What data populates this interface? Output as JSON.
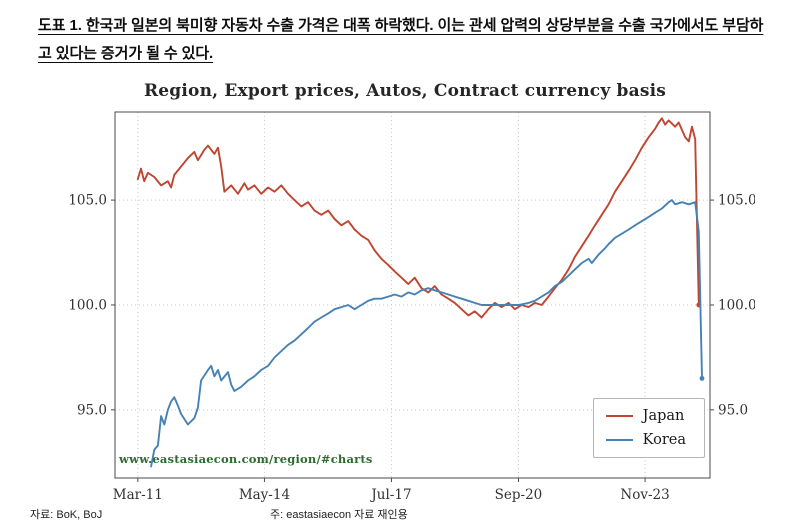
{
  "caption": {
    "text": "도표 1. 한국과 일본의 북미향 자동차 수출 가격은 대폭 하락했다. 이는 관세 압력의 상당부분을 수출 국가에서도 부담하고 있다는 증거가 될 수 있다."
  },
  "footer": {
    "source": "자료: BoK, BoJ",
    "note": "주: eastasiaecon 자료 재인용"
  },
  "chart_data": {
    "type": "line",
    "title": "Region, Export prices, Autos, Contract currency basis",
    "watermark": "www.eastasiaecon.com/region/#charts",
    "watermark_color": "#2e6b30",
    "grid": true,
    "legend_position": "lower right",
    "x_domain": [
      2010.6,
      2025.45
    ],
    "y_domain": [
      91.75,
      109.2
    ],
    "x_ticks": [
      {
        "value": 2011.17,
        "label": "Mar-11"
      },
      {
        "value": 2014.33,
        "label": "May-14"
      },
      {
        "value": 2017.5,
        "label": "Jul-17"
      },
      {
        "value": 2020.67,
        "label": "Sep-20"
      },
      {
        "value": 2023.83,
        "label": "Nov-23"
      }
    ],
    "y_ticks": [
      {
        "value": 95,
        "label": "95.0"
      },
      {
        "value": 100,
        "label": "100.0"
      },
      {
        "value": 105,
        "label": "105.0"
      }
    ],
    "series": [
      {
        "name": "Japan",
        "color": "#bf4630",
        "points": [
          [
            2011.17,
            106.0
          ],
          [
            2011.25,
            106.5
          ],
          [
            2011.33,
            105.9
          ],
          [
            2011.42,
            106.3
          ],
          [
            2011.58,
            106.1
          ],
          [
            2011.75,
            105.7
          ],
          [
            2011.92,
            105.9
          ],
          [
            2012.0,
            105.6
          ],
          [
            2012.08,
            106.2
          ],
          [
            2012.25,
            106.6
          ],
          [
            2012.42,
            107.0
          ],
          [
            2012.58,
            107.3
          ],
          [
            2012.67,
            106.9
          ],
          [
            2012.83,
            107.4
          ],
          [
            2012.92,
            107.6
          ],
          [
            2013.08,
            107.2
          ],
          [
            2013.17,
            107.5
          ],
          [
            2013.25,
            106.6
          ],
          [
            2013.33,
            105.4
          ],
          [
            2013.5,
            105.7
          ],
          [
            2013.67,
            105.3
          ],
          [
            2013.83,
            105.8
          ],
          [
            2013.92,
            105.5
          ],
          [
            2014.08,
            105.7
          ],
          [
            2014.25,
            105.3
          ],
          [
            2014.42,
            105.6
          ],
          [
            2014.58,
            105.4
          ],
          [
            2014.75,
            105.7
          ],
          [
            2014.92,
            105.3
          ],
          [
            2015.08,
            105.0
          ],
          [
            2015.25,
            104.7
          ],
          [
            2015.42,
            104.9
          ],
          [
            2015.58,
            104.5
          ],
          [
            2015.75,
            104.3
          ],
          [
            2015.92,
            104.5
          ],
          [
            2016.08,
            104.1
          ],
          [
            2016.25,
            103.8
          ],
          [
            2016.42,
            104.0
          ],
          [
            2016.58,
            103.6
          ],
          [
            2016.75,
            103.3
          ],
          [
            2016.92,
            103.1
          ],
          [
            2017.08,
            102.6
          ],
          [
            2017.25,
            102.2
          ],
          [
            2017.42,
            101.9
          ],
          [
            2017.58,
            101.6
          ],
          [
            2017.75,
            101.3
          ],
          [
            2017.92,
            101.0
          ],
          [
            2018.08,
            101.3
          ],
          [
            2018.25,
            100.8
          ],
          [
            2018.42,
            100.6
          ],
          [
            2018.58,
            100.9
          ],
          [
            2018.75,
            100.5
          ],
          [
            2018.92,
            100.3
          ],
          [
            2019.08,
            100.1
          ],
          [
            2019.25,
            99.8
          ],
          [
            2019.42,
            99.5
          ],
          [
            2019.58,
            99.7
          ],
          [
            2019.75,
            99.4
          ],
          [
            2019.92,
            99.8
          ],
          [
            2020.08,
            100.1
          ],
          [
            2020.25,
            99.9
          ],
          [
            2020.42,
            100.1
          ],
          [
            2020.58,
            99.8
          ],
          [
            2020.75,
            100.0
          ],
          [
            2020.92,
            99.9
          ],
          [
            2021.08,
            100.1
          ],
          [
            2021.25,
            100.0
          ],
          [
            2021.42,
            100.4
          ],
          [
            2021.58,
            100.8
          ],
          [
            2021.75,
            101.2
          ],
          [
            2021.92,
            101.7
          ],
          [
            2022.08,
            102.3
          ],
          [
            2022.25,
            102.8
          ],
          [
            2022.42,
            103.3
          ],
          [
            2022.58,
            103.8
          ],
          [
            2022.75,
            104.3
          ],
          [
            2022.92,
            104.8
          ],
          [
            2023.08,
            105.4
          ],
          [
            2023.25,
            105.9
          ],
          [
            2023.42,
            106.4
          ],
          [
            2023.58,
            106.9
          ],
          [
            2023.75,
            107.5
          ],
          [
            2023.92,
            108.0
          ],
          [
            2024.08,
            108.4
          ],
          [
            2024.17,
            108.7
          ],
          [
            2024.25,
            108.9
          ],
          [
            2024.33,
            108.6
          ],
          [
            2024.42,
            108.8
          ],
          [
            2024.58,
            108.5
          ],
          [
            2024.67,
            108.7
          ],
          [
            2024.83,
            108.0
          ],
          [
            2024.92,
            107.8
          ],
          [
            2025.0,
            108.5
          ],
          [
            2025.08,
            107.9
          ],
          [
            2025.17,
            100.0
          ]
        ]
      },
      {
        "name": "Korea",
        "color": "#4682b4",
        "points": [
          [
            2011.5,
            92.3
          ],
          [
            2011.58,
            93.1
          ],
          [
            2011.67,
            93.3
          ],
          [
            2011.75,
            94.7
          ],
          [
            2011.83,
            94.3
          ],
          [
            2011.92,
            95.0
          ],
          [
            2012.0,
            95.4
          ],
          [
            2012.08,
            95.6
          ],
          [
            2012.17,
            95.2
          ],
          [
            2012.25,
            94.8
          ],
          [
            2012.42,
            94.3
          ],
          [
            2012.58,
            94.6
          ],
          [
            2012.67,
            95.1
          ],
          [
            2012.75,
            96.4
          ],
          [
            2012.92,
            96.9
          ],
          [
            2013.0,
            97.1
          ],
          [
            2013.08,
            96.6
          ],
          [
            2013.17,
            96.9
          ],
          [
            2013.25,
            96.4
          ],
          [
            2013.42,
            96.8
          ],
          [
            2013.5,
            96.2
          ],
          [
            2013.58,
            95.9
          ],
          [
            2013.75,
            96.1
          ],
          [
            2013.92,
            96.4
          ],
          [
            2014.08,
            96.6
          ],
          [
            2014.25,
            96.9
          ],
          [
            2014.42,
            97.1
          ],
          [
            2014.58,
            97.5
          ],
          [
            2014.75,
            97.8
          ],
          [
            2014.92,
            98.1
          ],
          [
            2015.08,
            98.3
          ],
          [
            2015.25,
            98.6
          ],
          [
            2015.42,
            98.9
          ],
          [
            2015.58,
            99.2
          ],
          [
            2015.75,
            99.4
          ],
          [
            2015.92,
            99.6
          ],
          [
            2016.08,
            99.8
          ],
          [
            2016.25,
            99.9
          ],
          [
            2016.42,
            100.0
          ],
          [
            2016.58,
            99.8
          ],
          [
            2016.75,
            100.0
          ],
          [
            2016.92,
            100.2
          ],
          [
            2017.08,
            100.3
          ],
          [
            2017.25,
            100.3
          ],
          [
            2017.42,
            100.4
          ],
          [
            2017.58,
            100.5
          ],
          [
            2017.75,
            100.4
          ],
          [
            2017.92,
            100.6
          ],
          [
            2018.08,
            100.5
          ],
          [
            2018.25,
            100.7
          ],
          [
            2018.42,
            100.8
          ],
          [
            2018.58,
            100.7
          ],
          [
            2018.75,
            100.6
          ],
          [
            2018.92,
            100.5
          ],
          [
            2019.08,
            100.4
          ],
          [
            2019.25,
            100.3
          ],
          [
            2019.42,
            100.2
          ],
          [
            2019.58,
            100.1
          ],
          [
            2019.75,
            100.0
          ],
          [
            2020.0,
            100.0
          ],
          [
            2020.33,
            100.0
          ],
          [
            2020.67,
            100.0
          ],
          [
            2020.92,
            100.1
          ],
          [
            2021.08,
            100.2
          ],
          [
            2021.25,
            100.4
          ],
          [
            2021.42,
            100.6
          ],
          [
            2021.58,
            100.9
          ],
          [
            2021.75,
            101.1
          ],
          [
            2021.92,
            101.4
          ],
          [
            2022.08,
            101.7
          ],
          [
            2022.25,
            102.0
          ],
          [
            2022.42,
            102.2
          ],
          [
            2022.5,
            102.0
          ],
          [
            2022.67,
            102.4
          ],
          [
            2022.83,
            102.7
          ],
          [
            2022.92,
            102.9
          ],
          [
            2023.08,
            103.2
          ],
          [
            2023.25,
            103.4
          ],
          [
            2023.42,
            103.6
          ],
          [
            2023.58,
            103.8
          ],
          [
            2023.75,
            104.0
          ],
          [
            2023.92,
            104.2
          ],
          [
            2024.08,
            104.4
          ],
          [
            2024.25,
            104.6
          ],
          [
            2024.42,
            104.9
          ],
          [
            2024.5,
            105.0
          ],
          [
            2024.58,
            104.8
          ],
          [
            2024.75,
            104.9
          ],
          [
            2024.92,
            104.8
          ],
          [
            2025.08,
            104.9
          ],
          [
            2025.17,
            103.5
          ],
          [
            2025.25,
            96.5
          ]
        ]
      }
    ]
  }
}
